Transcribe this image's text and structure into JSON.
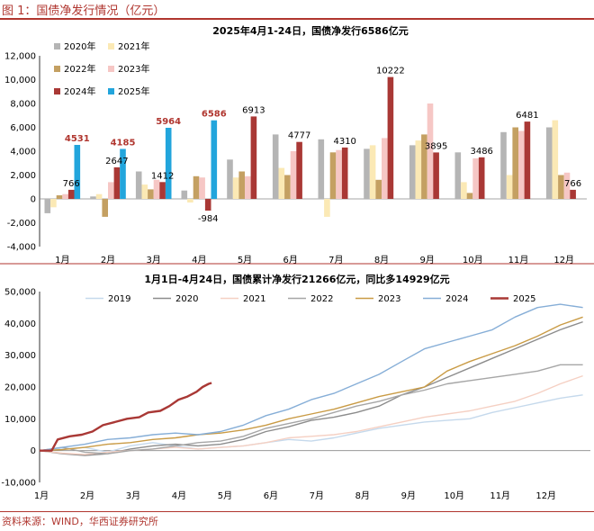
{
  "figure_title": "图 1：国债净发行情况（亿元）",
  "source": "资料来源：WIND，华西证券研究所",
  "colors": {
    "accent": "#b0362f",
    "y2020": "#b5b5b5",
    "y2021": "#fbe9b5",
    "y2022": "#c4a062",
    "y2023": "#f6c7c5",
    "y2024": "#a93835",
    "y2025": "#22a5dc",
    "l2019": "#c5d9ec",
    "l2020": "#8c8c8c",
    "l2021": "#f5d0c3",
    "l2022": "#a6a6a6",
    "l2023": "#c99b45",
    "l2024": "#86aed7",
    "l2025": "#a93835"
  },
  "chart_data": [
    {
      "type": "bar",
      "title": "2025年4月1-24日，国债净发行6586亿元",
      "categories": [
        "1月",
        "2月",
        "3月",
        "4月",
        "5月",
        "6月",
        "7月",
        "8月",
        "9月",
        "10月",
        "11月",
        "12月"
      ],
      "ylim": [
        -4000,
        12000
      ],
      "yticks": [
        "-4,000",
        "-2,000",
        "0",
        "2,000",
        "4,000",
        "6,000",
        "8,000",
        "10,000",
        "12,000"
      ],
      "grid": false,
      "legend": "top-left",
      "series": [
        {
          "name": "2020年",
          "values": [
            -1200,
            200,
            2300,
            700,
            3300,
            5400,
            5000,
            4200,
            4500,
            3900,
            5600,
            6000
          ]
        },
        {
          "name": "2021年",
          "values": [
            -700,
            400,
            1200,
            -300,
            1800,
            2600,
            -1500,
            4500,
            4900,
            1400,
            2000,
            6600
          ]
        },
        {
          "name": "2022年",
          "values": [
            300,
            -1500,
            800,
            1900,
            2300,
            2000,
            3900,
            1600,
            5400,
            500,
            6000,
            2000
          ]
        },
        {
          "name": "2023年",
          "values": [
            400,
            1400,
            1600,
            1800,
            1900,
            4000,
            4100,
            5100,
            8000,
            3400,
            5700,
            2200
          ]
        },
        {
          "name": "2024年",
          "values": [
            766,
            2647,
            1412,
            -984,
            6913,
            4777,
            4310,
            10222,
            3895,
            3486,
            6481,
            766
          ]
        },
        {
          "name": "2025年",
          "values": [
            4531,
            4185,
            5964,
            6586,
            null,
            null,
            null,
            null,
            null,
            null,
            null,
            null
          ]
        }
      ],
      "data_labels": [
        {
          "category": "1月",
          "series": "2025年",
          "text": "4531",
          "highlight": true
        },
        {
          "category": "1月",
          "series": "2024年",
          "text": "766",
          "highlight": false
        },
        {
          "category": "2月",
          "series": "2025年",
          "text": "4185",
          "highlight": true
        },
        {
          "category": "2月",
          "series": "2024年",
          "text": "2647",
          "highlight": false
        },
        {
          "category": "3月",
          "series": "2025年",
          "text": "5964",
          "highlight": true
        },
        {
          "category": "3月",
          "series": "2024年",
          "text": "1412",
          "highlight": false
        },
        {
          "category": "4月",
          "series": "2025年",
          "text": "6586",
          "highlight": true
        },
        {
          "category": "4月",
          "series": "2024年",
          "text": "-984",
          "highlight": false
        },
        {
          "category": "5月",
          "series": "2024年",
          "text": "6913",
          "highlight": false
        },
        {
          "category": "6月",
          "series": "2024年",
          "text": "4777",
          "highlight": false
        },
        {
          "category": "7月",
          "series": "2024年",
          "text": "4310",
          "highlight": false
        },
        {
          "category": "8月",
          "series": "2024年",
          "text": "10222",
          "highlight": false
        },
        {
          "category": "9月",
          "series": "2024年",
          "text": "3895",
          "highlight": false
        },
        {
          "category": "10月",
          "series": "2024年",
          "text": "3486",
          "highlight": false
        },
        {
          "category": "11月",
          "series": "2024年",
          "text": "6481",
          "highlight": false
        },
        {
          "category": "12月",
          "series": "2024年",
          "text": "766",
          "highlight": false
        }
      ]
    },
    {
      "type": "line",
      "title": "1月1日-4月24日，国债累计净发行21266亿元，同比多14929亿元",
      "x_unit": "day of year",
      "xticks": [
        "1月",
        "2月",
        "3月",
        "4月",
        "5月",
        "6月",
        "7月",
        "8月",
        "9月",
        "10月",
        "11月",
        "12月"
      ],
      "ylim": [
        -10000,
        50000
      ],
      "yticks": [
        "-10,000",
        "0",
        "10,000",
        "20,000",
        "30,000",
        "40,000",
        "50,000"
      ],
      "legend": "top",
      "series": [
        {
          "name": "2019",
          "points": [
            [
              0,
              0
            ],
            [
              15,
              500
            ],
            [
              30,
              1000
            ],
            [
              45,
              -500
            ],
            [
              60,
              1500
            ],
            [
              75,
              2500
            ],
            [
              90,
              1500
            ],
            [
              105,
              500
            ],
            [
              120,
              1000
            ],
            [
              135,
              1500
            ],
            [
              150,
              2500
            ],
            [
              165,
              3500
            ],
            [
              180,
              3000
            ],
            [
              195,
              4000
            ],
            [
              210,
              5500
            ],
            [
              225,
              7000
            ],
            [
              240,
              8000
            ],
            [
              255,
              9000
            ],
            [
              270,
              9500
            ],
            [
              285,
              10000
            ],
            [
              300,
              12000
            ],
            [
              315,
              13500
            ],
            [
              330,
              15000
            ],
            [
              345,
              16500
            ],
            [
              360,
              17500
            ]
          ]
        },
        {
          "name": "2020",
          "points": [
            [
              0,
              0
            ],
            [
              15,
              -1000
            ],
            [
              30,
              -1500
            ],
            [
              45,
              -1000
            ],
            [
              60,
              500
            ],
            [
              75,
              1500
            ],
            [
              90,
              2000
            ],
            [
              105,
              1500
            ],
            [
              120,
              2000
            ],
            [
              135,
              3500
            ],
            [
              150,
              6000
            ],
            [
              165,
              7500
            ],
            [
              180,
              9500
            ],
            [
              195,
              10500
            ],
            [
              210,
              12000
            ],
            [
              225,
              14000
            ],
            [
              240,
              17500
            ],
            [
              255,
              20000
            ],
            [
              270,
              23000
            ],
            [
              285,
              26000
            ],
            [
              300,
              29000
            ],
            [
              315,
              32000
            ],
            [
              330,
              35000
            ],
            [
              345,
              38000
            ],
            [
              360,
              40500
            ]
          ]
        },
        {
          "name": "2021",
          "points": [
            [
              0,
              0
            ],
            [
              15,
              -800
            ],
            [
              30,
              -1200
            ],
            [
              45,
              -500
            ],
            [
              60,
              0
            ],
            [
              75,
              500
            ],
            [
              90,
              1000
            ],
            [
              105,
              500
            ],
            [
              120,
              1000
            ],
            [
              135,
              1500
            ],
            [
              150,
              2500
            ],
            [
              165,
              4000
            ],
            [
              180,
              4500
            ],
            [
              195,
              5000
            ],
            [
              210,
              6000
            ],
            [
              225,
              7500
            ],
            [
              240,
              9000
            ],
            [
              255,
              10500
            ],
            [
              270,
              11500
            ],
            [
              285,
              12500
            ],
            [
              300,
              14000
            ],
            [
              315,
              15500
            ],
            [
              330,
              18000
            ],
            [
              345,
              21000
            ],
            [
              360,
              23500
            ]
          ]
        },
        {
          "name": "2022",
          "points": [
            [
              0,
              0
            ],
            [
              15,
              1000
            ],
            [
              30,
              -500
            ],
            [
              45,
              -1000
            ],
            [
              60,
              0
            ],
            [
              75,
              500
            ],
            [
              90,
              1500
            ],
            [
              105,
              2500
            ],
            [
              120,
              3000
            ],
            [
              135,
              4500
            ],
            [
              150,
              7000
            ],
            [
              165,
              8500
            ],
            [
              180,
              10000
            ],
            [
              195,
              12000
            ],
            [
              210,
              14000
            ],
            [
              225,
              15500
            ],
            [
              240,
              17500
            ],
            [
              255,
              19000
            ],
            [
              270,
              21000
            ],
            [
              285,
              22000
            ],
            [
              300,
              23000
            ],
            [
              315,
              24000
            ],
            [
              330,
              25000
            ],
            [
              345,
              27000
            ],
            [
              360,
              27000
            ]
          ]
        },
        {
          "name": "2023",
          "points": [
            [
              0,
              0
            ],
            [
              15,
              300
            ],
            [
              30,
              1000
            ],
            [
              45,
              2000
            ],
            [
              60,
              2500
            ],
            [
              75,
              3500
            ],
            [
              90,
              4000
            ],
            [
              105,
              5000
            ],
            [
              120,
              5500
            ],
            [
              135,
              6500
            ],
            [
              150,
              8000
            ],
            [
              165,
              10000
            ],
            [
              180,
              11500
            ],
            [
              195,
              13000
            ],
            [
              210,
              15000
            ],
            [
              225,
              17000
            ],
            [
              240,
              18500
            ],
            [
              255,
              20000
            ],
            [
              270,
              25000
            ],
            [
              285,
              28000
            ],
            [
              300,
              30500
            ],
            [
              315,
              33000
            ],
            [
              330,
              36000
            ],
            [
              345,
              39500
            ],
            [
              360,
              42000
            ]
          ]
        },
        {
          "name": "2024",
          "points": [
            [
              0,
              0
            ],
            [
              15,
              1000
            ],
            [
              30,
              2000
            ],
            [
              45,
              3500
            ],
            [
              60,
              4000
            ],
            [
              75,
              5000
            ],
            [
              90,
              5500
            ],
            [
              105,
              5000
            ],
            [
              120,
              6000
            ],
            [
              135,
              8000
            ],
            [
              150,
              11000
            ],
            [
              165,
              13000
            ],
            [
              180,
              16000
            ],
            [
              195,
              18000
            ],
            [
              210,
              21000
            ],
            [
              225,
              24000
            ],
            [
              240,
              28000
            ],
            [
              255,
              32000
            ],
            [
              270,
              34000
            ],
            [
              285,
              36000
            ],
            [
              300,
              38000
            ],
            [
              315,
              42000
            ],
            [
              330,
              45000
            ],
            [
              345,
              46000
            ],
            [
              360,
              45000
            ]
          ]
        },
        {
          "name": "2025",
          "points": [
            [
              0,
              0
            ],
            [
              8,
              0
            ],
            [
              12,
              3500
            ],
            [
              20,
              4500
            ],
            [
              28,
              5000
            ],
            [
              35,
              6000
            ],
            [
              42,
              8000
            ],
            [
              50,
              9000
            ],
            [
              58,
              10000
            ],
            [
              66,
              10500
            ],
            [
              72,
              12000
            ],
            [
              80,
              12500
            ],
            [
              86,
              14000
            ],
            [
              92,
              16000
            ],
            [
              98,
              17000
            ],
            [
              104,
              18500
            ],
            [
              108,
              20000
            ],
            [
              112,
              21000
            ],
            [
              114,
              21266
            ]
          ]
        }
      ]
    }
  ]
}
